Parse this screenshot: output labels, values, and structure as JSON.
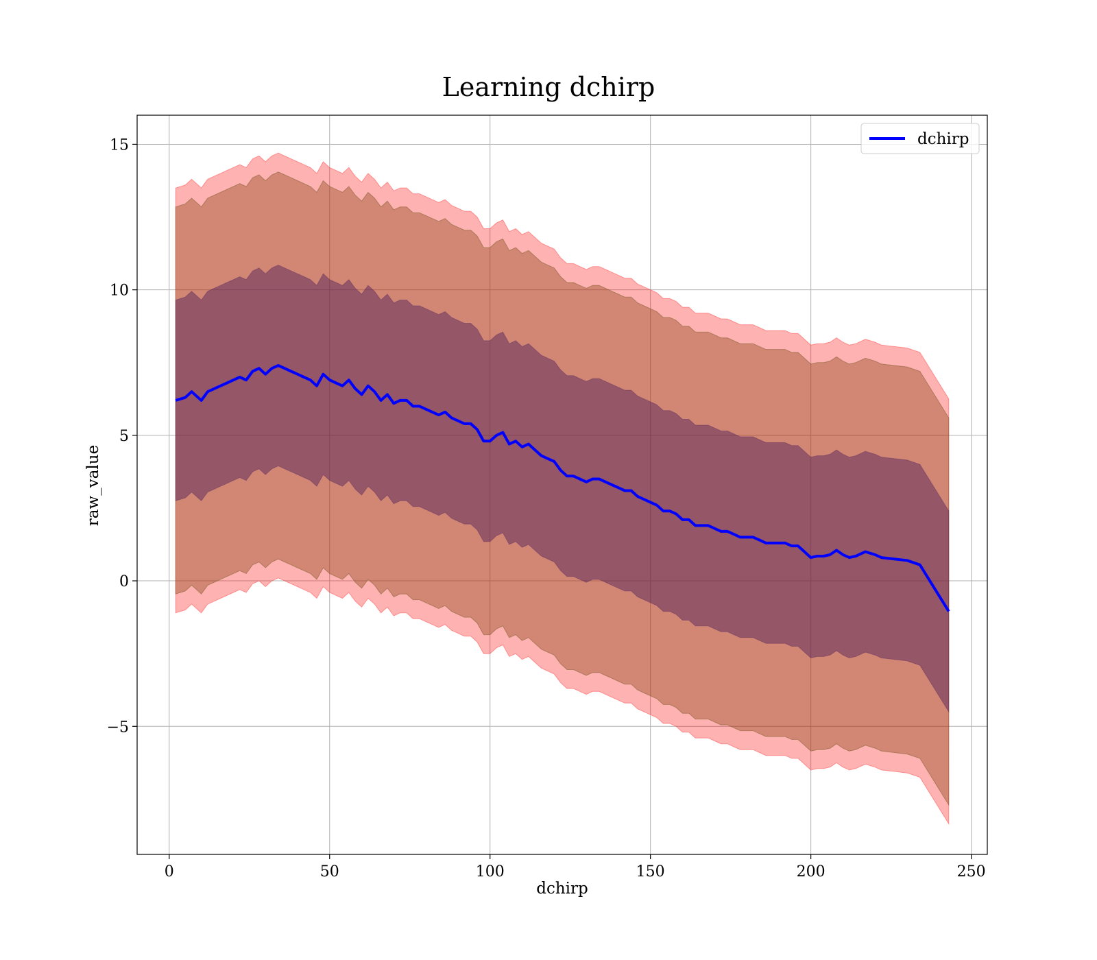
{
  "chart_data": {
    "type": "line",
    "title": "Learning dchirp",
    "xlabel": "dchirp",
    "ylabel": "raw_value",
    "xlim": [
      -10,
      255
    ],
    "ylim": [
      -9.4,
      16.0
    ],
    "xticks": [
      {
        "value": 0,
        "label": "0"
      },
      {
        "value": 50,
        "label": "50"
      },
      {
        "value": 100,
        "label": "100"
      },
      {
        "value": 150,
        "label": "150"
      },
      {
        "value": 200,
        "label": "200"
      },
      {
        "value": 250,
        "label": "250"
      }
    ],
    "yticks": [
      {
        "value": -5,
        "label": "−5"
      },
      {
        "value": 0,
        "label": "0"
      },
      {
        "value": 5,
        "label": "5"
      },
      {
        "value": 10,
        "label": "10"
      },
      {
        "value": 15,
        "label": "15"
      }
    ],
    "grid": true,
    "legend": {
      "position": "top-right",
      "entries": [
        "dchirp"
      ]
    },
    "colors": {
      "line": "#0000ff",
      "band_outer": "#ff000055",
      "band_mid": "#8b4513",
      "band_inner": "#6b2d5c"
    },
    "series": [
      {
        "name": "dchirp",
        "x": [
          2,
          5,
          7,
          9,
          10,
          12,
          14,
          16,
          18,
          20,
          22,
          24,
          26,
          28,
          30,
          32,
          34,
          36,
          38,
          40,
          42,
          44,
          46,
          48,
          50,
          52,
          54,
          56,
          58,
          60,
          62,
          64,
          66,
          68,
          70,
          72,
          74,
          76,
          78,
          80,
          82,
          84,
          86,
          88,
          90,
          92,
          94,
          96,
          98,
          100,
          102,
          104,
          106,
          108,
          110,
          112,
          114,
          116,
          118,
          120,
          122,
          124,
          126,
          128,
          130,
          132,
          134,
          136,
          138,
          140,
          142,
          144,
          146,
          148,
          150,
          152,
          154,
          156,
          158,
          160,
          162,
          164,
          166,
          168,
          170,
          172,
          174,
          176,
          178,
          180,
          182,
          184,
          186,
          188,
          190,
          192,
          194,
          196,
          198,
          200,
          202,
          204,
          206,
          208,
          210,
          212,
          214,
          217,
          220,
          222,
          226,
          230,
          234,
          243
        ],
        "y": [
          6.2,
          6.3,
          6.5,
          6.3,
          6.2,
          6.5,
          6.6,
          6.7,
          6.8,
          6.9,
          7.0,
          6.9,
          7.2,
          7.3,
          7.1,
          7.3,
          7.4,
          7.3,
          7.2,
          7.1,
          7.0,
          6.9,
          6.7,
          7.1,
          6.9,
          6.8,
          6.7,
          6.9,
          6.6,
          6.4,
          6.7,
          6.5,
          6.2,
          6.4,
          6.1,
          6.2,
          6.2,
          6.0,
          6.0,
          5.9,
          5.8,
          5.7,
          5.8,
          5.6,
          5.5,
          5.4,
          5.4,
          5.2,
          4.8,
          4.8,
          5.0,
          5.1,
          4.7,
          4.8,
          4.6,
          4.7,
          4.5,
          4.3,
          4.2,
          4.1,
          3.8,
          3.6,
          3.6,
          3.5,
          3.4,
          3.5,
          3.5,
          3.4,
          3.3,
          3.2,
          3.1,
          3.1,
          2.9,
          2.8,
          2.7,
          2.6,
          2.4,
          2.4,
          2.3,
          2.1,
          2.1,
          1.9,
          1.9,
          1.9,
          1.8,
          1.7,
          1.7,
          1.6,
          1.5,
          1.5,
          1.5,
          1.4,
          1.3,
          1.3,
          1.3,
          1.3,
          1.2,
          1.2,
          1.0,
          0.8,
          0.85,
          0.85,
          0.9,
          1.05,
          0.9,
          0.8,
          0.85,
          1.0,
          0.9,
          0.8,
          0.75,
          0.7,
          0.55,
          -1.05
        ],
        "band_inner_halfwidth": [
          3.45,
          3.45,
          3.45,
          3.45,
          3.45,
          3.45,
          3.45,
          3.45,
          3.45,
          3.45,
          3.45,
          3.45,
          3.45,
          3.45,
          3.45,
          3.45,
          3.45,
          3.45,
          3.45,
          3.45,
          3.45,
          3.45,
          3.45,
          3.45,
          3.45,
          3.45,
          3.45,
          3.45,
          3.45,
          3.45,
          3.45,
          3.45,
          3.45,
          3.45,
          3.45,
          3.45,
          3.45,
          3.45,
          3.45,
          3.45,
          3.45,
          3.45,
          3.45,
          3.45,
          3.45,
          3.45,
          3.45,
          3.45,
          3.45,
          3.45,
          3.45,
          3.45,
          3.45,
          3.45,
          3.45,
          3.45,
          3.45,
          3.45,
          3.45,
          3.45,
          3.45,
          3.45,
          3.45,
          3.45,
          3.45,
          3.45,
          3.45,
          3.45,
          3.45,
          3.45,
          3.45,
          3.45,
          3.45,
          3.45,
          3.45,
          3.45,
          3.45,
          3.45,
          3.45,
          3.45,
          3.45,
          3.45,
          3.45,
          3.45,
          3.45,
          3.45,
          3.45,
          3.45,
          3.45,
          3.45,
          3.45,
          3.45,
          3.45,
          3.45,
          3.45,
          3.45,
          3.45,
          3.45,
          3.45,
          3.45,
          3.45,
          3.45,
          3.45,
          3.45,
          3.45,
          3.45,
          3.45,
          3.45,
          3.45,
          3.45,
          3.45,
          3.45,
          3.45,
          3.45
        ],
        "band_mid_halfwidth": 6.65,
        "band_outer_halfwidth": 7.3
      }
    ]
  }
}
